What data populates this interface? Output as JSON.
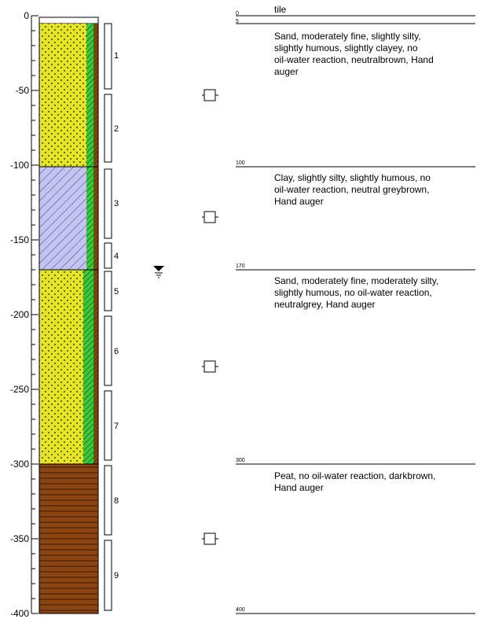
{
  "depth_axis": {
    "ticks": [
      "0",
      "-50",
      "-100",
      "-150",
      "-200",
      "-250",
      "-300",
      "-350",
      "-400"
    ]
  },
  "samples": [
    "1",
    "2",
    "3",
    "4",
    "5",
    "6",
    "7",
    "8",
    "9"
  ],
  "layers": [
    {
      "top_label": "0",
      "top_label_2": "5",
      "title": "tile",
      "lines": [
        "Sand, moderately fine, slightly silty,",
        "slightly humous, slightly clayey, no",
        "oil-water reaction, neutralbrown, Hand",
        "auger"
      ]
    },
    {
      "top_label": "100",
      "lines": [
        "Clay, slightly silty, slightly humous, no",
        "oil-water reaction, neutral greybrown,",
        "Hand auger"
      ]
    },
    {
      "top_label": "170",
      "lines": [
        "Sand, moderately fine, moderately silty,",
        "slightly humous, no oil-water reaction,",
        "neutralgrey, Hand auger"
      ]
    },
    {
      "top_label": "300",
      "lines": [
        "Peat, no oil-water reaction, darkbrown,",
        "Hand auger"
      ]
    }
  ],
  "bottom_label": "400",
  "colors": {
    "sand": "#e6e61e",
    "clay": "#c4c4f0",
    "peat": "#8b4513",
    "humous_strip": "#3cc83c"
  },
  "icons": [
    "groundwater-level-icon",
    "sample-marker-icon"
  ]
}
